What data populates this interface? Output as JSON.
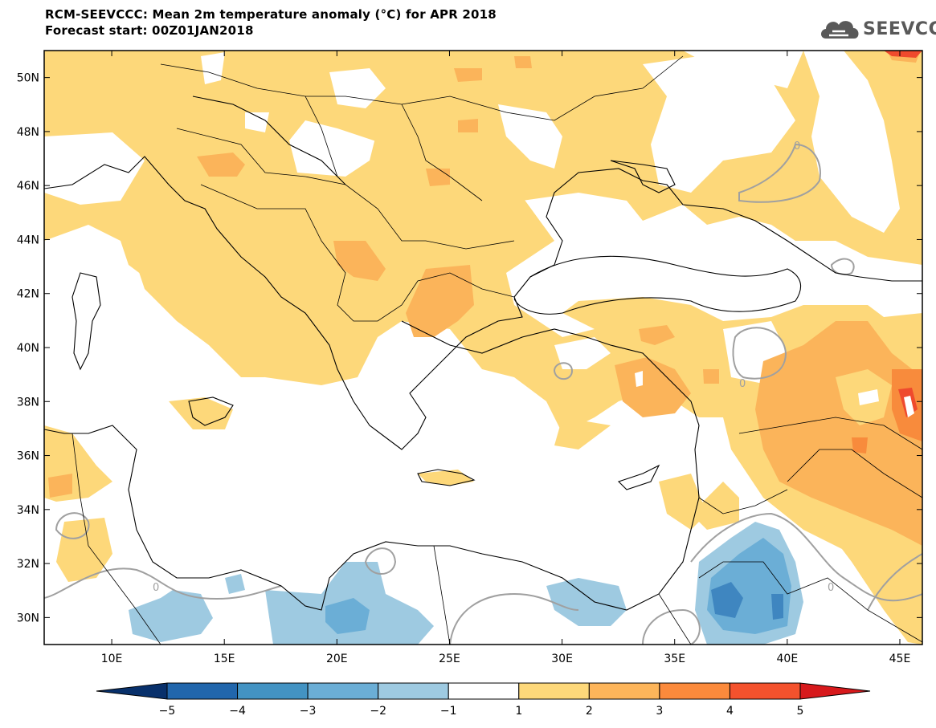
{
  "title": {
    "line1": "RCM-SEEVCCC: Mean 2m temperature anomaly (°C) for APR 2018",
    "line2": "Forecast start: 00Z01JAN2018"
  },
  "logo": {
    "text": "SEEVCCC",
    "icon": "cloud-icon"
  },
  "map": {
    "projection": "lat-lon",
    "lon_range": [
      7,
      46
    ],
    "lat_range": [
      29,
      51
    ],
    "lon_ticks": [
      "10E",
      "15E",
      "20E",
      "25E",
      "30E",
      "35E",
      "40E",
      "45E"
    ],
    "lat_ticks": [
      "30N",
      "32N",
      "34N",
      "36N",
      "38N",
      "40N",
      "42N",
      "44N",
      "46N",
      "48N",
      "50N"
    ],
    "contour_label": "0"
  },
  "colorbar": {
    "labels": [
      "−5",
      "−4",
      "−3",
      "−2",
      "−1",
      "1",
      "2",
      "3",
      "4",
      "5"
    ],
    "colors": [
      "#08306b",
      "#2166ac",
      "#4393c3",
      "#6baed6",
      "#9ecae1",
      "#ffffff",
      "#fdd87a",
      "#fdb55a",
      "#fb8a3c",
      "#f4522d",
      "#d7191c"
    ]
  },
  "colors": {
    "class_1_2": "#fdd87a",
    "class_2_3": "#fbb45a",
    "class_3_4": "#f88b3c",
    "class_4_5": "#ef4a2d",
    "class_m1_m2": "#9ecae1",
    "class_m2_m3": "#6baed6",
    "class_m3_m4": "#3f86c0",
    "zero_contour": "#a0a0a0",
    "coastline": "#000000"
  }
}
